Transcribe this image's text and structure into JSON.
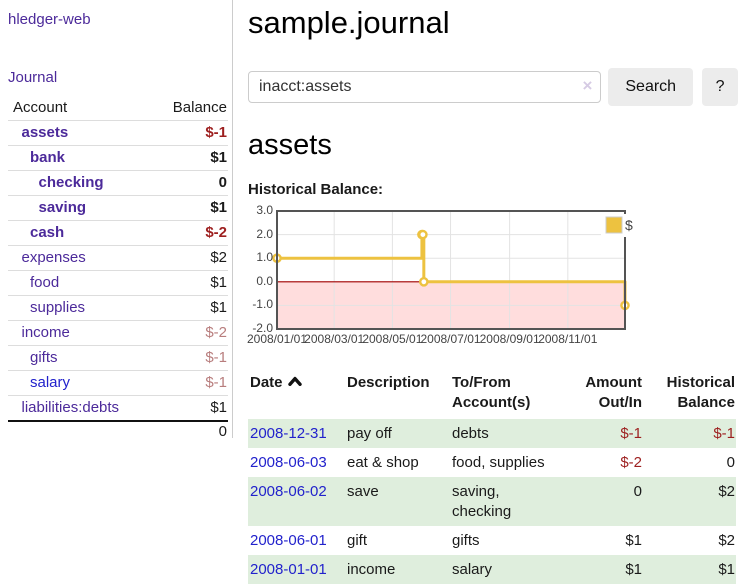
{
  "colors": {
    "link_purple": "#4c2a9a",
    "link_blue": "#2222cc",
    "negative_strong": "#9d1f1f",
    "negative_muted": "#b87d7d",
    "row_shade_green": "#dfeedd",
    "chart_series_yellow": "#edc240",
    "chart_negative_region": "#ffdddd",
    "chart_zero_line": "#a40000",
    "chart_border": "#545454"
  },
  "sidebar": {
    "brand": "hledger-web",
    "nav": {
      "journal": "Journal"
    },
    "accounts_table": {
      "account_header": "Account",
      "balance_header": "Balance",
      "rows": [
        {
          "account": "assets",
          "balance": "$-1",
          "depth": 1,
          "bold": true,
          "link": "purple",
          "tone": "neg"
        },
        {
          "account": "bank",
          "balance": "$1",
          "depth": 2,
          "bold": true,
          "link": "purple",
          "tone": "pos"
        },
        {
          "account": "checking",
          "balance": "0",
          "depth": 3,
          "bold": true,
          "link": "purple",
          "tone": "pos"
        },
        {
          "account": "saving",
          "balance": "$1",
          "depth": 3,
          "bold": true,
          "link": "purple",
          "tone": "pos"
        },
        {
          "account": "cash",
          "balance": "$-2",
          "depth": 2,
          "bold": true,
          "link": "purple",
          "tone": "neg"
        },
        {
          "account": "expenses",
          "balance": "$2",
          "depth": 1,
          "bold": false,
          "link": "purple",
          "tone": "pos"
        },
        {
          "account": "food",
          "balance": "$1",
          "depth": 2,
          "bold": false,
          "link": "purple",
          "tone": "pos"
        },
        {
          "account": "supplies",
          "balance": "$1",
          "depth": 2,
          "bold": false,
          "link": "purple",
          "tone": "pos"
        },
        {
          "account": "income",
          "balance": "$-2",
          "depth": 1,
          "bold": false,
          "link": "purple",
          "tone": "negmuted"
        },
        {
          "account": "gifts",
          "balance": "$-1",
          "depth": 2,
          "bold": false,
          "link": "purple",
          "tone": "negmuted"
        },
        {
          "account": "salary",
          "balance": "$-1",
          "depth": 2,
          "bold": false,
          "link": "blue",
          "tone": "negmuted"
        },
        {
          "account": "liabilities:debts",
          "balance": "$1",
          "depth": 1,
          "bold": false,
          "link": "purple",
          "tone": "pos"
        }
      ],
      "total": "0"
    }
  },
  "main": {
    "title": "sample.journal",
    "search": {
      "value": "inacct:assets",
      "clear_glyph": "×",
      "button": "Search",
      "help_button": "?"
    },
    "section_title": "assets",
    "chart_label": "Historical Balance:",
    "register": {
      "headers": {
        "date": "Date",
        "description": "Description",
        "accounts": "To/From Account(s)",
        "amount": "Amount Out/In",
        "balance": "Historical Balance"
      },
      "rows": [
        {
          "date": "2008-12-31",
          "description": "pay off",
          "accounts": "debts",
          "amount": "$-1",
          "amount_tone": "neg",
          "balance": "$-1",
          "balance_tone": "neg"
        },
        {
          "date": "2008-06-03",
          "description": "eat & shop",
          "accounts": "food, supplies",
          "amount": "$-2",
          "amount_tone": "neg",
          "balance": "0",
          "balance_tone": "pos"
        },
        {
          "date": "2008-06-02",
          "description": "save",
          "accounts": "saving, checking",
          "amount": "0",
          "amount_tone": "pos",
          "balance": "$2",
          "balance_tone": "pos"
        },
        {
          "date": "2008-06-01",
          "description": "gift",
          "accounts": "gifts",
          "amount": "$1",
          "amount_tone": "pos",
          "balance": "$2",
          "balance_tone": "pos"
        },
        {
          "date": "2008-01-01",
          "description": "income",
          "accounts": "salary",
          "amount": "$1",
          "amount_tone": "pos",
          "balance": "$1",
          "balance_tone": "pos"
        }
      ]
    }
  },
  "chart_data": {
    "type": "line",
    "title": "Historical Balance",
    "step": true,
    "legend": [
      {
        "label": "$",
        "color": "#edc240"
      }
    ],
    "legend_position": "top-right",
    "grid": true,
    "x_range": [
      "2008-01-01",
      "2008-12-31"
    ],
    "ylim": [
      -2,
      3
    ],
    "y_ticks": [
      3.0,
      2.0,
      1.0,
      0.0,
      -1.0,
      -2.0
    ],
    "x_ticks": [
      {
        "date": "2008-01-01",
        "label": "2008/01/01"
      },
      {
        "date": "2008-03-01",
        "label": "2008/03/01"
      },
      {
        "date": "2008-05-01",
        "label": "2008/05/01"
      },
      {
        "date": "2008-07-01",
        "label": "2008/07/01"
      },
      {
        "date": "2008-09-01",
        "label": "2008/09/01"
      },
      {
        "date": "2008-11-01",
        "label": "2008/11/01"
      }
    ],
    "series": [
      {
        "name": "$",
        "color": "#edc240",
        "points": [
          {
            "date": "2008-01-01",
            "value": 1
          },
          {
            "date": "2008-06-01",
            "value": 2
          },
          {
            "date": "2008-06-02",
            "value": 2
          },
          {
            "date": "2008-06-03",
            "value": 0
          },
          {
            "date": "2008-12-31",
            "value": -1
          }
        ]
      }
    ],
    "negative_region_color": "#ffdddd",
    "zero_line_color": "#a40000"
  }
}
